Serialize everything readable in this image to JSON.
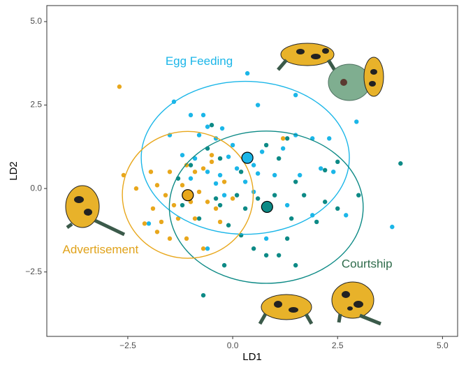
{
  "chart_data": {
    "type": "scatter",
    "x_label": "LD1",
    "y_label": "LD2",
    "xlim": [
      -4.43,
      5.36
    ],
    "ylim": [
      -4.43,
      5.48
    ],
    "xticks": [
      {
        "value": -2.5,
        "label": "−2.5"
      },
      {
        "value": 0,
        "label": "0.0"
      },
      2.5,
      {
        "value": 5,
        "label": "5.0"
      }
    ],
    "yticks": [
      {
        "value": -2.5,
        "label": "−2.5"
      },
      {
        "value": 0,
        "label": "0.0"
      },
      2.5,
      {
        "value": 5,
        "label": "5.0"
      }
    ],
    "grid": false,
    "series": [
      {
        "name": "Egg Feeding",
        "color": "#1bb6e8",
        "label_color": "#1bb6e8",
        "x": [
          0.35,
          -1.4,
          -0.7,
          -1.0,
          -0.25,
          -0.6,
          0.6,
          1.5,
          1.9,
          2.3,
          2.95,
          1.2,
          2.1,
          1.6,
          2.4,
          1.0,
          0.5,
          0.6,
          0.1,
          -0.3,
          -0.6,
          -0.9,
          -1.2,
          -1.0,
          -0.4,
          0.3,
          -0.2,
          0.5,
          1.3,
          1.9,
          2.7,
          3.8,
          -2.0,
          -0.6,
          0.8,
          -1.5,
          0.0,
          -0.4,
          -0.8,
          0.7,
          1.5,
          -0.1
        ],
        "values": [
          3.45,
          2.6,
          2.2,
          2.2,
          1.8,
          1.85,
          2.5,
          2.8,
          1.5,
          1.5,
          2.0,
          1.2,
          0.6,
          0.4,
          0.5,
          0.4,
          0.7,
          0.45,
          0.6,
          0.4,
          0.5,
          0.9,
          1.0,
          0.3,
          0.15,
          0.2,
          -0.2,
          -0.1,
          -0.5,
          -0.8,
          -0.8,
          -1.15,
          -1.05,
          -1.8,
          -1.5,
          1.6,
          1.3,
          1.5,
          1.6,
          1.1,
          1.6,
          0.95
        ],
        "centroid": [
          0.35,
          0.92
        ],
        "ellipse": {
          "cx": 0.3,
          "cy": 0.92,
          "rx": 2.48,
          "ry": 2.29
        }
      },
      {
        "name": "Courtship",
        "color": "#0d8a86",
        "label_color": "#2e6b4a",
        "x": [
          4.0,
          2.2,
          2.5,
          1.3,
          1.1,
          0.8,
          -0.5,
          -0.6,
          -1.0,
          -1.3,
          -0.3,
          0.2,
          1.5,
          1.7,
          2.2,
          2.0,
          2.5,
          3.0,
          1.4,
          1.0,
          0.6,
          0.3,
          -0.3,
          -0.8,
          -1.2,
          0.2,
          0.5,
          0.8,
          1.3,
          -0.2,
          -0.1,
          -0.7,
          -0.4,
          0.1,
          1.5,
          1.1
        ],
        "values": [
          0.75,
          0.55,
          0.8,
          1.5,
          0.9,
          1.3,
          1.9,
          1.2,
          0.7,
          0.3,
          0.9,
          0.5,
          0.2,
          -0.2,
          -0.4,
          -1.0,
          -0.6,
          -0.2,
          -0.9,
          -0.2,
          -0.3,
          -0.6,
          -0.5,
          -0.9,
          -0.5,
          -1.4,
          -1.8,
          -2.0,
          -1.5,
          -2.3,
          -1.1,
          -3.2,
          -0.3,
          -0.2,
          -2.3,
          -2.0
        ],
        "centroid": [
          0.82,
          -0.55
        ],
        "ellipse": {
          "cx": 0.8,
          "cy": -0.56,
          "rx": 2.31,
          "ry": 2.28
        }
      },
      {
        "name": "Advertisement",
        "color": "#e8a71c",
        "label_color": "#e0a21a",
        "x": [
          -2.7,
          -2.6,
          -2.3,
          -2.1,
          -1.9,
          -1.95,
          -1.8,
          -1.6,
          -1.5,
          -1.4,
          -1.7,
          -1.5,
          -1.1,
          -0.9,
          -0.7,
          -0.5,
          -1.2,
          -0.8,
          -0.6,
          -0.4,
          -0.9,
          -1.1,
          -0.7,
          -0.3,
          -0.2,
          0.0,
          -1.3,
          -0.5,
          -1.0,
          -1.8,
          1.2
        ],
        "values": [
          3.05,
          0.4,
          0.0,
          -1.05,
          -0.6,
          0.5,
          0.1,
          -0.2,
          0.5,
          -0.5,
          -1.0,
          -1.5,
          0.7,
          0.5,
          0.6,
          0.8,
          0.1,
          -0.1,
          -0.4,
          -0.6,
          -0.9,
          -1.5,
          -1.8,
          -1.0,
          0.2,
          -0.3,
          -0.9,
          1.0,
          -0.4,
          -1.3,
          1.5
        ],
        "centroid": [
          -1.07,
          -0.2
        ],
        "ellipse": {
          "cx": -1.07,
          "cy": -0.19,
          "rx": 1.56,
          "ry": 1.9
        }
      }
    ]
  }
}
